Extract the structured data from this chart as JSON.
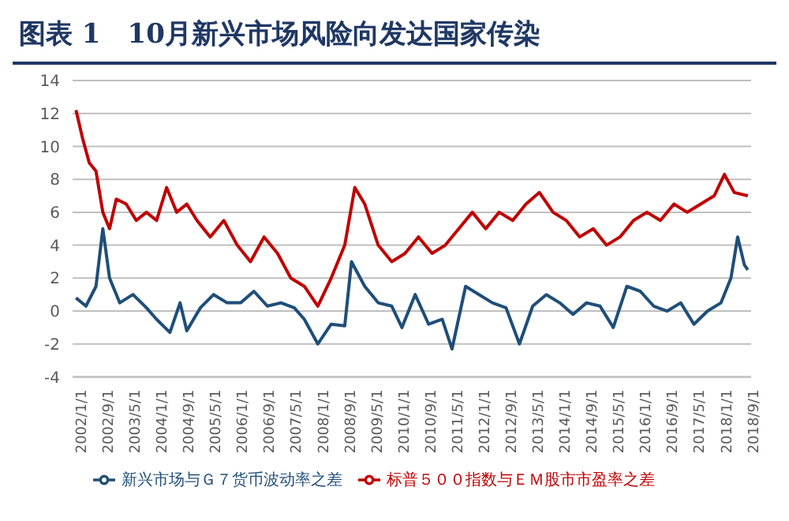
{
  "chart_data": {
    "type": "line",
    "title": "图表 1　10月新兴市场风险向发达国家传染",
    "xlim": [
      "2001-12",
      "2018-10"
    ],
    "xticks": [
      {
        "value": "2002-01-01",
        "label": "2002/1/1"
      },
      {
        "value": "2002-09-01",
        "label": "2002/9/1"
      },
      {
        "value": "2003-05-01",
        "label": "2003/5/1"
      },
      {
        "value": "2004-01-01",
        "label": "2004/1/1"
      },
      {
        "value": "2004-09-01",
        "label": "2004/9/1"
      },
      {
        "value": "2005-05-01",
        "label": "2005/5/1"
      },
      {
        "value": "2006-01-01",
        "label": "2006/1/1"
      },
      {
        "value": "2006-09-01",
        "label": "2006/9/1"
      },
      {
        "value": "2007-05-01",
        "label": "2007/5/1"
      },
      {
        "value": "2008-01-01",
        "label": "2008/1/1"
      },
      {
        "value": "2008-09-01",
        "label": "2008/9/1"
      },
      {
        "value": "2009-05-01",
        "label": "2009/5/1"
      },
      {
        "value": "2010-01-01",
        "label": "2010/1/1"
      },
      {
        "value": "2010-09-01",
        "label": "2010/9/1"
      },
      {
        "value": "2011-05-01",
        "label": "2011/5/1"
      },
      {
        "value": "2012-01-01",
        "label": "2012/1/1"
      },
      {
        "value": "2012-09-01",
        "label": "2012/9/1"
      },
      {
        "value": "2013-05-01",
        "label": "2013/5/1"
      },
      {
        "value": "2014-01-01",
        "label": "2014/1/1"
      },
      {
        "value": "2014-09-01",
        "label": "2014/9/1"
      },
      {
        "value": "2015-05-01",
        "label": "2015/5/1"
      },
      {
        "value": "2016-01-01",
        "label": "2016/1/1"
      },
      {
        "value": "2016-09-01",
        "label": "2016/9/1"
      },
      {
        "value": "2017-05-01",
        "label": "2017/5/1"
      },
      {
        "value": "2018-01-01",
        "label": "2018/1/1"
      },
      {
        "value": "2018-09-01",
        "label": "2018/9/1"
      }
    ],
    "ylim": [
      -4,
      14
    ],
    "yticks": [
      -4,
      -2,
      0,
      2,
      4,
      6,
      8,
      10,
      12,
      14
    ],
    "grid": "y",
    "legend": "bottom",
    "marker": "none",
    "line_style": "solid",
    "series": [
      {
        "name": "新兴市场与Ｇ７货币波动率之差",
        "color": "#1f4e79",
        "x": [
          "2002-01",
          "2002-04",
          "2002-07",
          "2002-09",
          "2002-11",
          "2003-02",
          "2003-06",
          "2003-10",
          "2004-01",
          "2004-05",
          "2004-08",
          "2004-10",
          "2005-02",
          "2005-06",
          "2005-10",
          "2006-02",
          "2006-06",
          "2006-10",
          "2007-02",
          "2007-06",
          "2007-09",
          "2008-01",
          "2008-05",
          "2008-09",
          "2008-11",
          "2009-03",
          "2009-07",
          "2009-11",
          "2010-02",
          "2010-06",
          "2010-10",
          "2011-02",
          "2011-05",
          "2011-09",
          "2012-01",
          "2012-05",
          "2012-09",
          "2013-01",
          "2013-05",
          "2013-09",
          "2014-01",
          "2014-05",
          "2014-09",
          "2015-01",
          "2015-05",
          "2015-09",
          "2016-01",
          "2016-05",
          "2016-09",
          "2017-01",
          "2017-05",
          "2017-09",
          "2018-01",
          "2018-04",
          "2018-06",
          "2018-08",
          "2018-09"
        ],
        "values": [
          0.8,
          0.3,
          1.5,
          5,
          2,
          0.5,
          1,
          0.2,
          -0.5,
          -1.3,
          0.5,
          -1.2,
          0.2,
          1,
          0.5,
          0.5,
          1.2,
          0.3,
          0.5,
          0.2,
          -0.5,
          -2,
          -0.8,
          -0.9,
          3,
          1.5,
          0.5,
          0.3,
          -1,
          1,
          -0.8,
          -0.5,
          -2.3,
          1.5,
          1,
          0.5,
          0.2,
          -2,
          0.3,
          1,
          0.5,
          -0.2,
          0.5,
          0.3,
          -1,
          1.5,
          1.2,
          0.3,
          0,
          0.5,
          -0.8,
          0,
          0.5,
          2,
          4.5,
          2.8,
          2.5
        ]
      },
      {
        "name": "标普５００指数与ＥＭ股市市盈率之差",
        "color": "#c00000",
        "x": [
          "2002-01",
          "2002-03",
          "2002-05",
          "2002-07",
          "2002-09",
          "2002-11",
          "2003-01",
          "2003-04",
          "2003-07",
          "2003-10",
          "2004-01",
          "2004-04",
          "2004-07",
          "2004-10",
          "2005-01",
          "2005-05",
          "2005-09",
          "2006-01",
          "2006-05",
          "2006-09",
          "2007-01",
          "2007-05",
          "2007-09",
          "2008-01",
          "2008-05",
          "2008-09",
          "2008-12",
          "2009-03",
          "2009-07",
          "2009-11",
          "2010-03",
          "2010-07",
          "2010-11",
          "2011-03",
          "2011-07",
          "2011-11",
          "2012-03",
          "2012-07",
          "2012-11",
          "2013-03",
          "2013-07",
          "2013-11",
          "2014-03",
          "2014-07",
          "2014-11",
          "2015-03",
          "2015-07",
          "2015-11",
          "2016-03",
          "2016-07",
          "2016-11",
          "2017-03",
          "2017-07",
          "2017-11",
          "2018-02",
          "2018-05",
          "2018-09"
        ],
        "values": [
          12.2,
          10.5,
          9,
          8.5,
          6,
          5,
          6.8,
          6.5,
          5.5,
          6,
          5.5,
          7.5,
          6,
          6.5,
          5.5,
          4.5,
          5.5,
          4,
          3,
          4.5,
          3.5,
          2,
          1.5,
          0.3,
          2,
          4,
          7.5,
          6.5,
          4,
          3,
          3.5,
          4.5,
          3.5,
          4,
          5,
          6,
          5,
          6,
          5.5,
          6.5,
          7.2,
          6,
          5.5,
          4.5,
          5,
          4,
          4.5,
          5.5,
          6,
          5.5,
          6.5,
          6,
          6.5,
          7,
          8.3,
          7.2,
          7
        ]
      }
    ]
  }
}
